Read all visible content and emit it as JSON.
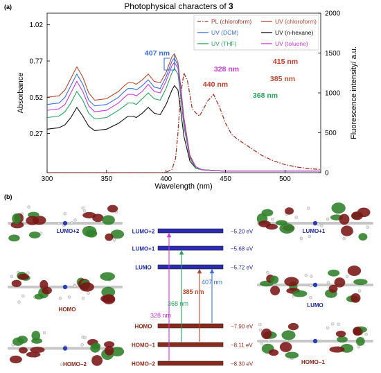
{
  "chart_data": [
    {
      "type": "line",
      "panel_label": "(a)",
      "title": "Photophysical characters of",
      "title_bold": "3",
      "xlabel": "Wavelength (nm)",
      "ylabel_left": "Absorbance",
      "ylabel_right": "Fluorescence intensity/ a.u.",
      "xlim": [
        300,
        530
      ],
      "ylim_left": [
        0,
        1.1
      ],
      "ylim_right": [
        0,
        2000
      ],
      "x_ticks": [
        300,
        350,
        400,
        450,
        500
      ],
      "y_ticks_left": [
        0.27,
        0.52,
        0.77,
        1.02
      ],
      "y_ticks_right": [
        0,
        500,
        1000,
        1500,
        2000
      ],
      "grid": false,
      "legend_position": "top-right",
      "series": [
        {
          "name": "PL (chloroform)",
          "axis": "right",
          "color": "#a0392a",
          "dash": "dashdot",
          "x": [
            300,
            380,
            395,
            400,
            405,
            408,
            410,
            412,
            415,
            418,
            422,
            425,
            428,
            430,
            435,
            440,
            445,
            450,
            455,
            460,
            470,
            480,
            490,
            500,
            510,
            520,
            530
          ],
          "y": [
            0,
            0,
            0,
            5,
            40,
            180,
            500,
            950,
            1250,
            1150,
            800,
            750,
            710,
            760,
            900,
            980,
            820,
            620,
            480,
            420,
            320,
            220,
            150,
            100,
            70,
            50,
            40
          ]
        },
        {
          "name": "UV (chloroform)",
          "axis": "left",
          "color": "#b04a30",
          "dash": "solid",
          "x": [
            300,
            310,
            315,
            320,
            325,
            330,
            335,
            340,
            350,
            360,
            365,
            368,
            372,
            375,
            380,
            385,
            390,
            395,
            400,
            405,
            407,
            410,
            412,
            415,
            420,
            425,
            430,
            450,
            480,
            530
          ],
          "y": [
            0.52,
            0.53,
            0.57,
            0.65,
            0.73,
            0.66,
            0.55,
            0.5,
            0.51,
            0.56,
            0.6,
            0.62,
            0.62,
            0.61,
            0.64,
            0.68,
            0.63,
            0.62,
            0.69,
            0.8,
            0.82,
            0.76,
            0.62,
            0.38,
            0.12,
            0.04,
            0.02,
            0.01,
            0.01,
            0.01
          ]
        },
        {
          "name": "UV (DCM)",
          "axis": "left",
          "color": "#3a6fd6",
          "dash": "solid",
          "x": [
            300,
            310,
            315,
            320,
            325,
            330,
            335,
            340,
            350,
            360,
            365,
            368,
            372,
            375,
            380,
            385,
            390,
            395,
            400,
            405,
            407,
            410,
            412,
            415,
            420,
            425,
            430,
            450,
            480,
            530
          ],
          "y": [
            0.47,
            0.48,
            0.52,
            0.6,
            0.68,
            0.61,
            0.5,
            0.46,
            0.47,
            0.52,
            0.56,
            0.58,
            0.58,
            0.57,
            0.6,
            0.64,
            0.59,
            0.58,
            0.66,
            0.77,
            0.79,
            0.74,
            0.6,
            0.36,
            0.11,
            0.04,
            0.02,
            0.01,
            0.01,
            0.01
          ]
        },
        {
          "name": "UV (n-hexane)",
          "axis": "left",
          "color": "#111111",
          "dash": "solid",
          "x": [
            300,
            310,
            315,
            320,
            325,
            330,
            335,
            340,
            350,
            360,
            365,
            368,
            372,
            375,
            380,
            385,
            390,
            395,
            400,
            405,
            407,
            410,
            412,
            415,
            420,
            425,
            430,
            450,
            480,
            530
          ],
          "y": [
            0.3,
            0.31,
            0.33,
            0.38,
            0.45,
            0.39,
            0.32,
            0.29,
            0.3,
            0.34,
            0.37,
            0.39,
            0.39,
            0.38,
            0.41,
            0.45,
            0.41,
            0.4,
            0.47,
            0.57,
            0.6,
            0.57,
            0.45,
            0.25,
            0.08,
            0.03,
            0.02,
            0.01,
            0.01,
            0.01
          ]
        },
        {
          "name": "UV (THF)",
          "axis": "left",
          "color": "#2aa05a",
          "dash": "solid",
          "x": [
            300,
            310,
            315,
            320,
            325,
            330,
            335,
            340,
            350,
            360,
            365,
            368,
            372,
            375,
            380,
            385,
            390,
            395,
            400,
            405,
            407,
            410,
            412,
            415,
            420,
            425,
            430,
            450,
            480,
            530
          ],
          "y": [
            0.38,
            0.39,
            0.42,
            0.48,
            0.56,
            0.5,
            0.41,
            0.37,
            0.38,
            0.43,
            0.46,
            0.48,
            0.48,
            0.47,
            0.51,
            0.55,
            0.51,
            0.5,
            0.58,
            0.69,
            0.72,
            0.68,
            0.55,
            0.32,
            0.1,
            0.03,
            0.02,
            0.01,
            0.01,
            0.01
          ]
        },
        {
          "name": "UV (toluene)",
          "axis": "left",
          "color": "#c43cd0",
          "dash": "solid",
          "x": [
            300,
            310,
            315,
            320,
            325,
            330,
            335,
            340,
            350,
            360,
            365,
            368,
            372,
            375,
            380,
            385,
            390,
            395,
            400,
            405,
            407,
            410,
            412,
            415,
            420,
            425,
            430,
            450,
            480,
            530
          ],
          "y": [
            0.43,
            0.44,
            0.47,
            0.55,
            0.63,
            0.56,
            0.46,
            0.42,
            0.43,
            0.48,
            0.52,
            0.54,
            0.54,
            0.53,
            0.56,
            0.61,
            0.56,
            0.55,
            0.63,
            0.74,
            0.76,
            0.72,
            0.58,
            0.35,
            0.11,
            0.04,
            0.02,
            0.01,
            0.01,
            0.01
          ]
        }
      ],
      "annotations": [
        {
          "text": "328 nm",
          "color": "#c43cd0"
        },
        {
          "text": "368 nm",
          "color": "#2aa05a"
        },
        {
          "text": "385 nm",
          "color": "#b04a30"
        },
        {
          "text": "407 nm",
          "color": "#3a6fd6"
        },
        {
          "text": "415 nm",
          "color": "#c0392b"
        },
        {
          "text": "440 nm",
          "color": "#c0392b"
        }
      ]
    },
    {
      "type": "diagram",
      "panel_label": "(b)",
      "levels": [
        {
          "name": "LUMO+2",
          "energy": "−5.20 eV",
          "energy_value": -5.2,
          "kind": "unoccupied"
        },
        {
          "name": "LUMO+1",
          "energy": "−5.68 eV",
          "energy_value": -5.68,
          "kind": "unoccupied"
        },
        {
          "name": "LUMO",
          "energy": "−5.72 eV",
          "energy_value": -5.72,
          "kind": "unoccupied"
        },
        {
          "name": "HOMO",
          "energy": "−7.90 eV",
          "energy_value": -7.9,
          "kind": "occupied"
        },
        {
          "name": "HOMO−1",
          "energy": "−8.11 eV",
          "energy_value": -8.11,
          "kind": "occupied"
        },
        {
          "name": "HOMO−2",
          "energy": "−8.30 eV",
          "energy_value": -8.3,
          "kind": "occupied"
        }
      ],
      "transitions": [
        {
          "label": "328 nm",
          "from": "HOMO−2",
          "to": "LUMO+2",
          "color": "#c43cd0"
        },
        {
          "label": "368 nm",
          "from": "HOMO−1",
          "to": "LUMO+1",
          "color": "#2aa05a"
        },
        {
          "label": "385 nm",
          "from": "HOMO−1",
          "to": "LUMO",
          "color": "#b04a30"
        },
        {
          "label": "407 nm",
          "from": "HOMO",
          "to": "LUMO",
          "color": "#3a6fd6"
        }
      ],
      "orbital_images": [
        {
          "label": "LUMO+2",
          "side": "left"
        },
        {
          "label": "HOMO",
          "side": "left"
        },
        {
          "label": "HOMO−2",
          "side": "left"
        },
        {
          "label": "LUMO+1",
          "side": "right"
        },
        {
          "label": "LUMO",
          "side": "right"
        },
        {
          "label": "HOMO−1",
          "side": "right"
        }
      ]
    }
  ],
  "colors": {
    "unoccupied_level": "#2b2bb8",
    "occupied_level": "#8b2a1a",
    "unoccupied_label": "#1f2a9a",
    "occupied_label": "#8b2a1a",
    "lobe_red": "#7a1515",
    "lobe_green": "#2f7f2a"
  }
}
